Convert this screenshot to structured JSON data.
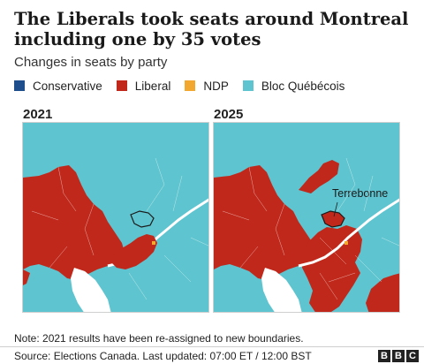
{
  "header": {
    "title": "The Liberals took seats around Montreal including one by 35 votes",
    "subtitle": "Changes in seats by party"
  },
  "legend": [
    {
      "label": "Conservative",
      "color": "#1f4e8c"
    },
    {
      "label": "Liberal",
      "color": "#c0281b"
    },
    {
      "label": "NDP",
      "color": "#f2a72e"
    },
    {
      "label": "Bloc Québécois",
      "color": "#5ec4cf"
    }
  ],
  "colors": {
    "liberal": "#c0281b",
    "bloc": "#5ec4cf",
    "ndp": "#f2a72e",
    "conservative": "#1f4e8c",
    "water": "#ffffff"
  },
  "maps": [
    {
      "year": "2021"
    },
    {
      "year": "2025",
      "annotation": "Terrebonne"
    }
  ],
  "footer": {
    "note": "Note: 2021 results have been re-assigned to new boundaries.",
    "source": "Source: Elections Canada. Last updated: 07:00 ET / 12:00 BST",
    "logo": [
      "B",
      "B",
      "C"
    ]
  }
}
